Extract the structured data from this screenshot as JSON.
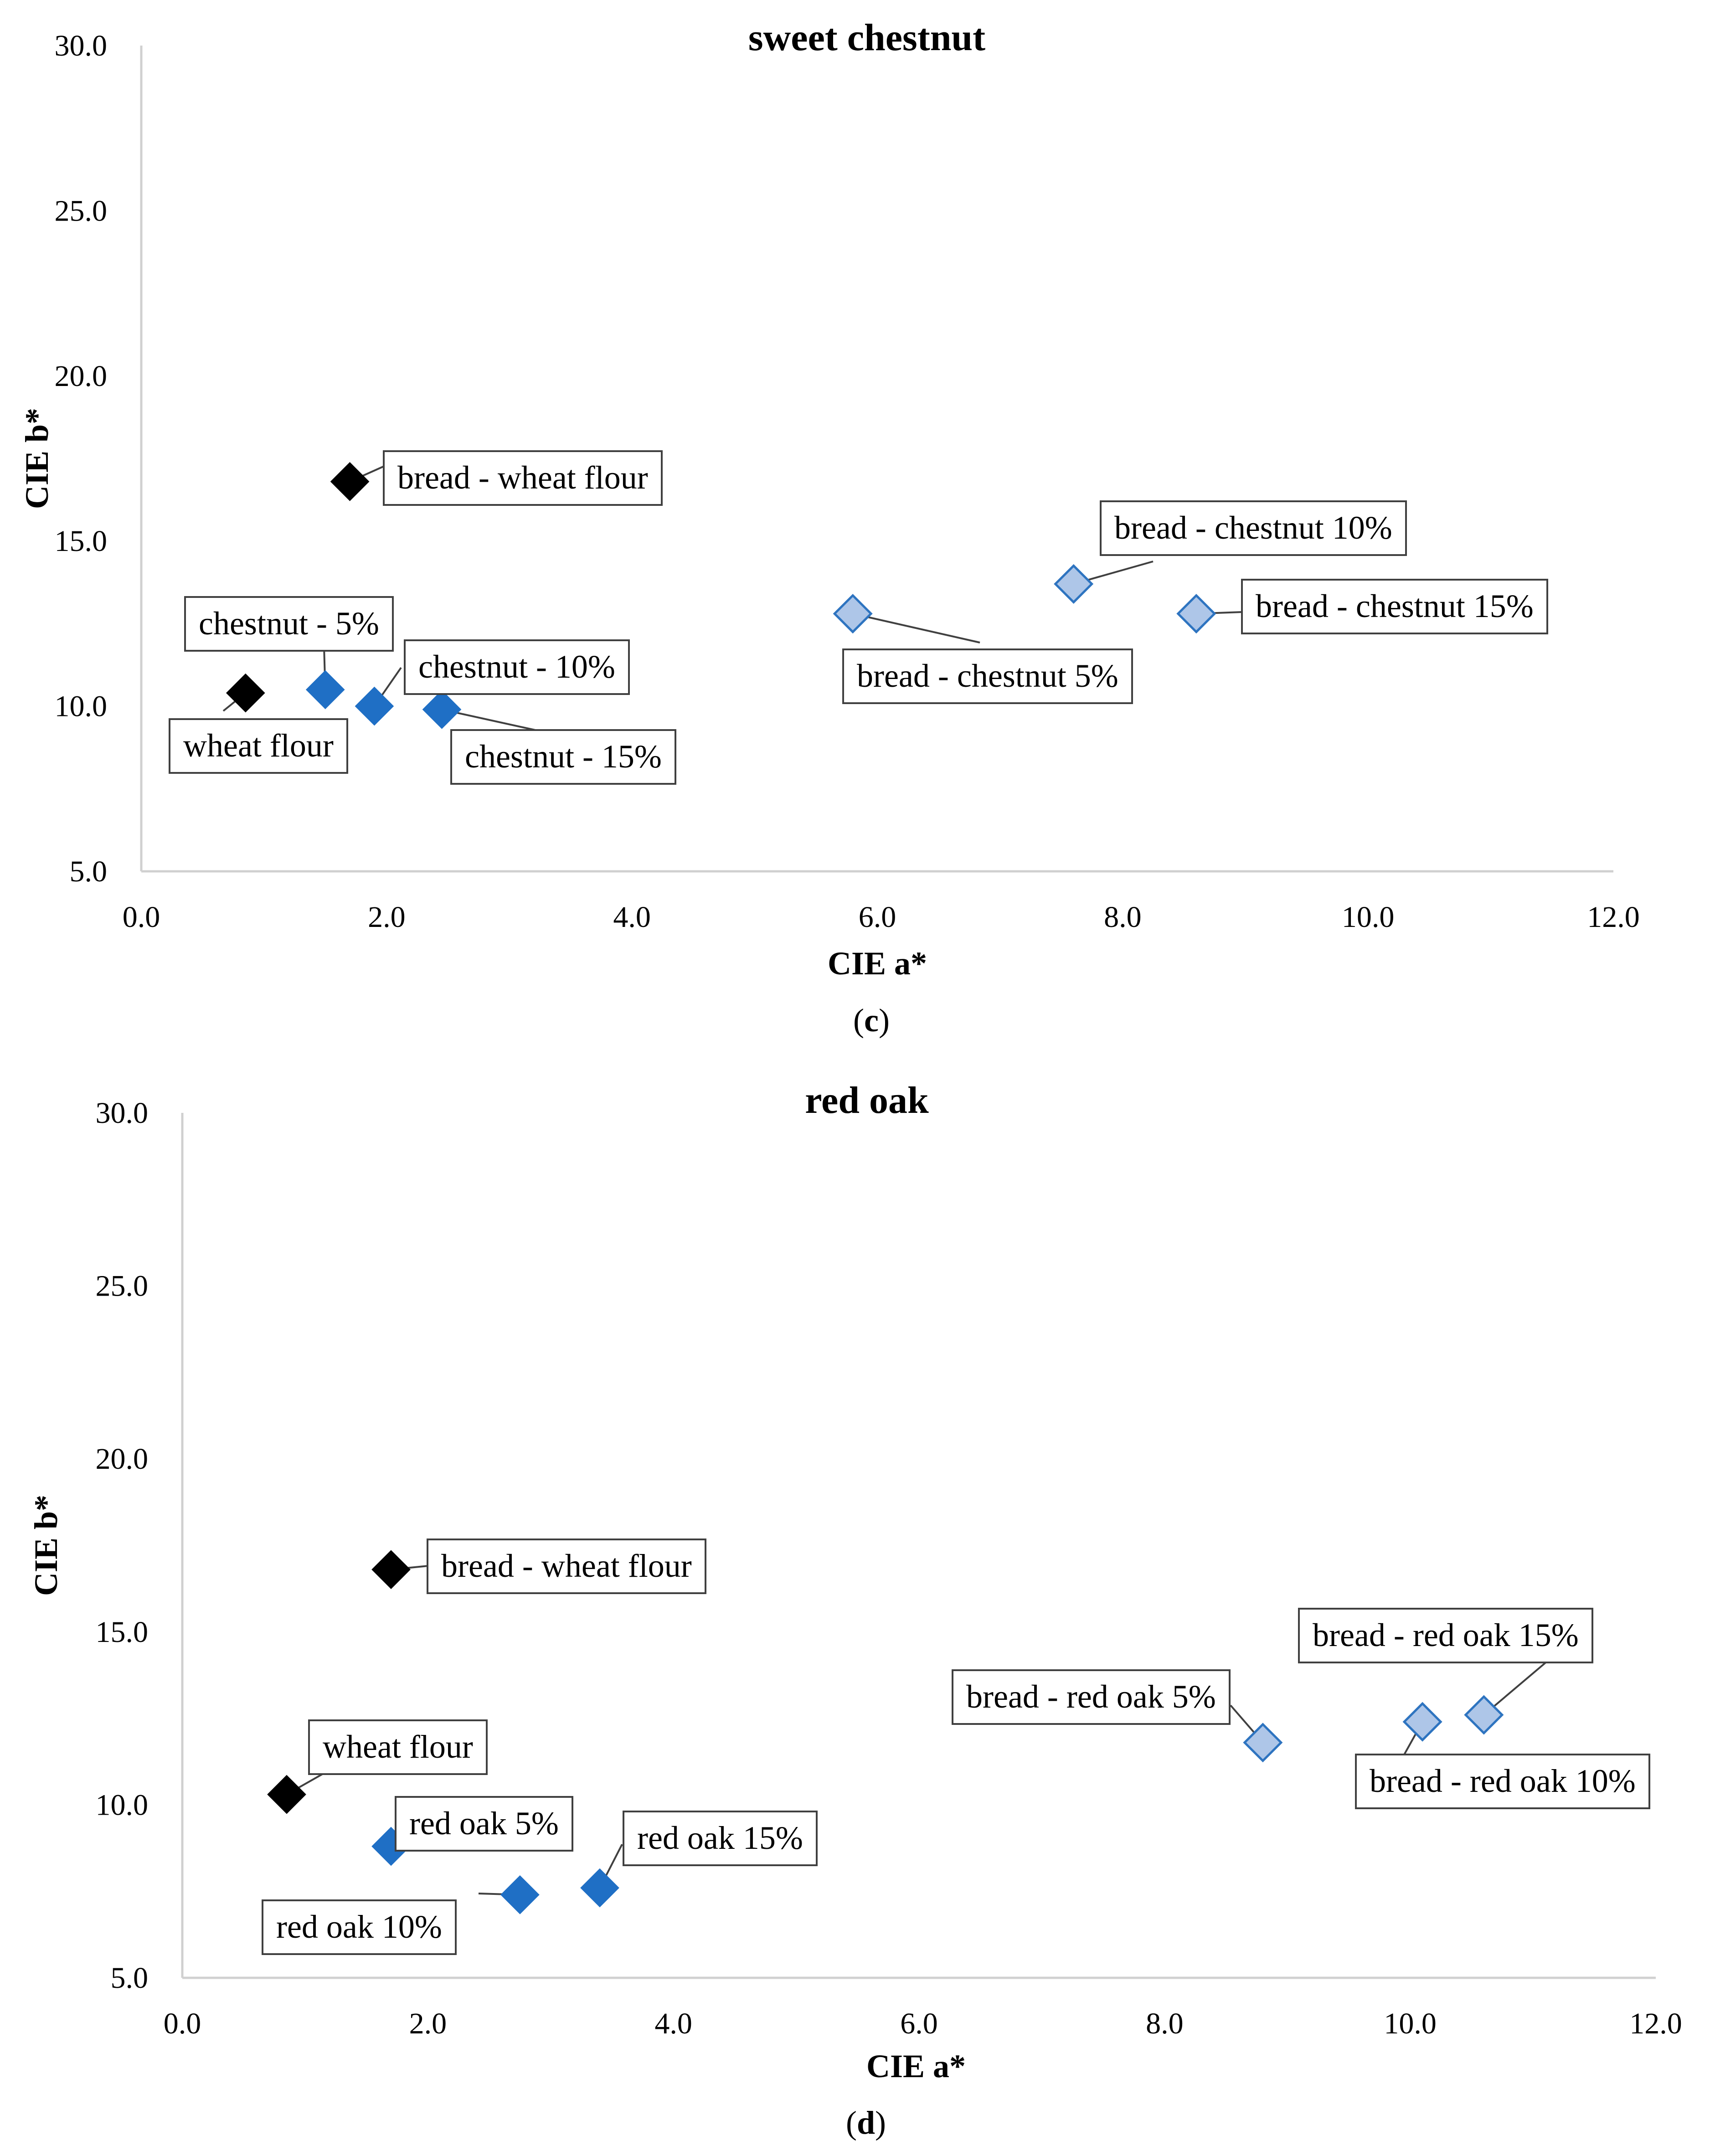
{
  "colors": {
    "wheat": "#000000",
    "flour_sample": "#1f6fc5",
    "bread_sample": "#aec6e8",
    "bread_sample_stroke": "#2e74c0"
  },
  "chart_data": [
    {
      "type": "scatter",
      "title": "sweet chestnut",
      "xlabel": "CIE a*",
      "ylabel": "CIE b*",
      "xlim": [
        0,
        12
      ],
      "ylim": [
        5,
        30
      ],
      "xticks": [
        "0.0",
        "2.0",
        "4.0",
        "6.0",
        "8.0",
        "10.0",
        "12.0"
      ],
      "yticks": [
        "5.0",
        "10.0",
        "15.0",
        "20.0",
        "25.0",
        "30.0"
      ],
      "panel_label": {
        "open": "(",
        "letter": "c",
        "close": ")"
      },
      "points": [
        {
          "label": "bread - wheat flour",
          "x": 1.7,
          "y": 16.8,
          "group": "wheat"
        },
        {
          "label": "wheat flour",
          "x": 0.85,
          "y": 10.4,
          "group": "wheat"
        },
        {
          "label": "chestnut - 5%",
          "x": 1.5,
          "y": 10.5,
          "group": "flour_sample"
        },
        {
          "label": "chestnut - 10%",
          "x": 1.9,
          "y": 10.0,
          "group": "flour_sample"
        },
        {
          "label": "chestnut - 15%",
          "x": 2.45,
          "y": 9.9,
          "group": "flour_sample"
        },
        {
          "label": "bread - chestnut 5%",
          "x": 5.8,
          "y": 12.8,
          "group": "bread_sample"
        },
        {
          "label": "bread - chestnut 10%",
          "x": 7.6,
          "y": 13.7,
          "group": "bread_sample"
        },
        {
          "label": "bread - chestnut 15%",
          "x": 8.6,
          "y": 12.8,
          "group": "bread_sample"
        }
      ]
    },
    {
      "type": "scatter",
      "title": "red oak",
      "xlabel": "CIE a*",
      "ylabel": "CIE b*",
      "xlim": [
        0,
        12
      ],
      "ylim": [
        5,
        30
      ],
      "xticks": [
        "0.0",
        "2.0",
        "4.0",
        "6.0",
        "8.0",
        "10.0",
        "12.0"
      ],
      "yticks": [
        "5.0",
        "10.0",
        "15.0",
        "20.0",
        "25.0",
        "30.0"
      ],
      "panel_label": {
        "open": "(",
        "letter": "d",
        "close": ")"
      },
      "points": [
        {
          "label": "bread - wheat flour",
          "x": 1.7,
          "y": 16.8,
          "group": "wheat"
        },
        {
          "label": "wheat flour",
          "x": 0.85,
          "y": 10.3,
          "group": "wheat"
        },
        {
          "label": "red oak 5%",
          "x": 1.7,
          "y": 8.8,
          "group": "flour_sample"
        },
        {
          "label": "red oak 10%",
          "x": 2.75,
          "y": 7.4,
          "group": "flour_sample"
        },
        {
          "label": "red oak 15%",
          "x": 3.4,
          "y": 7.6,
          "group": "flour_sample"
        },
        {
          "label": "bread - red oak 5%",
          "x": 8.8,
          "y": 11.8,
          "group": "bread_sample"
        },
        {
          "label": "bread - red oak 10%",
          "x": 10.1,
          "y": 12.4,
          "group": "bread_sample"
        },
        {
          "label": "bread - red oak 15%",
          "x": 10.6,
          "y": 12.6,
          "group": "bread_sample"
        }
      ]
    }
  ]
}
